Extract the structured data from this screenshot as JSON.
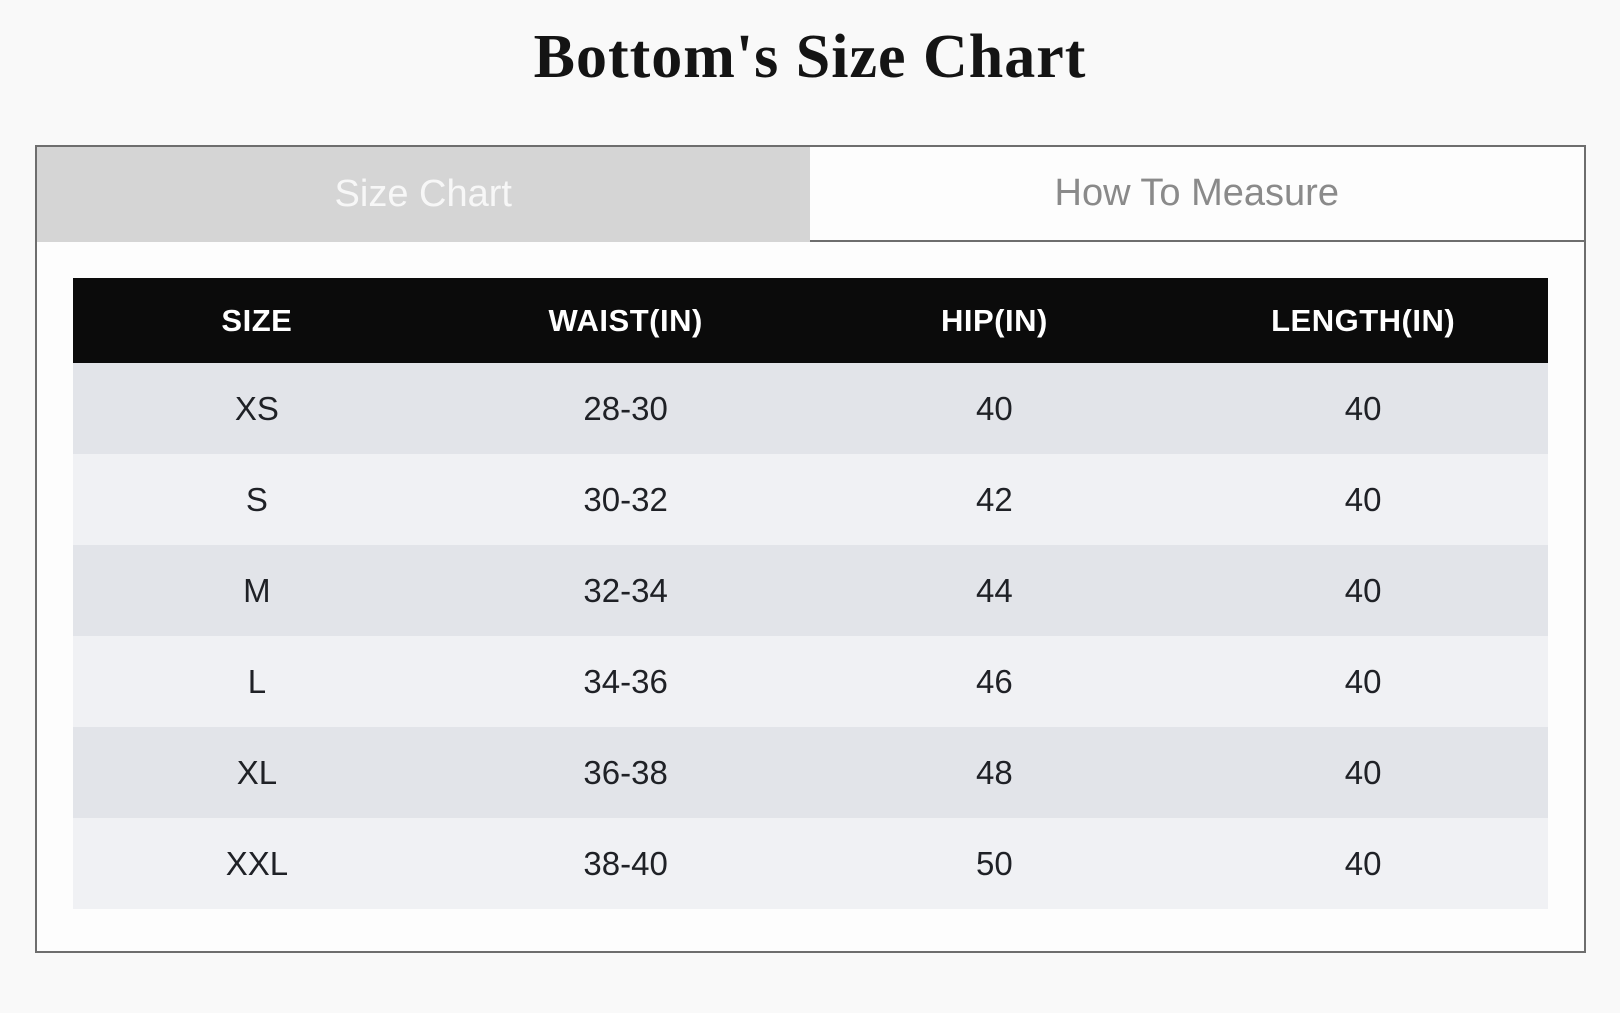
{
  "page": {
    "title": "Bottom's Size Chart"
  },
  "tabs": [
    {
      "label": "Size Chart",
      "active": true
    },
    {
      "label": "How To Measure",
      "active": false
    }
  ],
  "size_chart": {
    "columns": [
      "SIZE",
      "WAIST(IN)",
      "HIP(IN)",
      "LENGTH(IN)"
    ],
    "rows": [
      [
        "XS",
        "28-30",
        "40",
        "40"
      ],
      [
        "S",
        "30-32",
        "42",
        "40"
      ],
      [
        "M",
        "32-34",
        "44",
        "40"
      ],
      [
        "L",
        "34-36",
        "46",
        "40"
      ],
      [
        "XL",
        "36-38",
        "48",
        "40"
      ],
      [
        "XXL",
        "38-40",
        "50",
        "40"
      ]
    ]
  },
  "colors": {
    "page_background": "#f9f9f9",
    "container_border": "#6e6e6e",
    "active_tab_background": "#d5d5d5",
    "active_tab_text": "#f7f7f7",
    "inactive_tab_text": "#8a8a8a",
    "header_background": "#0b0b0b",
    "header_text": "#ffffff",
    "row_odd_background": "#e2e4e9",
    "row_even_background": "#f0f1f4",
    "cell_text": "#1f2126"
  }
}
